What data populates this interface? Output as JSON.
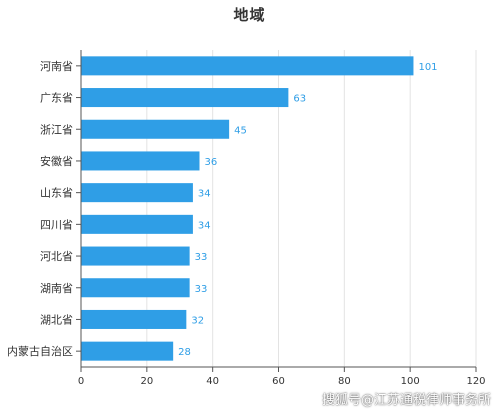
{
  "chart_data": {
    "type": "bar",
    "orientation": "horizontal",
    "title": "地域",
    "categories": [
      "河南省",
      "广东省",
      "浙江省",
      "安徽省",
      "山东省",
      "四川省",
      "河北省",
      "湖南省",
      "湖北省",
      "内蒙古自治区"
    ],
    "values": [
      101,
      63,
      45,
      36,
      34,
      34,
      33,
      33,
      32,
      28
    ],
    "xlim": [
      0,
      120
    ],
    "xticks": [
      0,
      20,
      40,
      60,
      80,
      100,
      120
    ],
    "grid": true,
    "data_labels": true,
    "colors": {
      "bar": "#2f9ee6",
      "label": "#2f9ee6",
      "grid": "#e3e3e3",
      "axis": "#555555",
      "text": "#333333"
    }
  },
  "watermark": "搜狐号@江苏通税律师事务所"
}
